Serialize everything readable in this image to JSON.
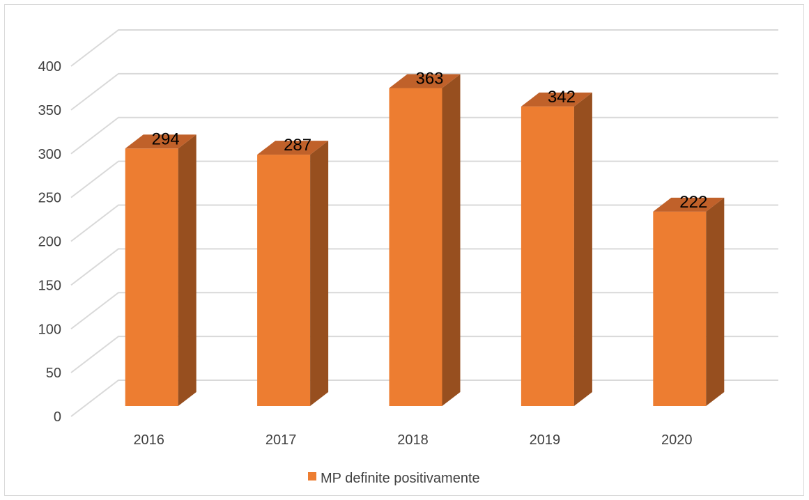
{
  "chart_data": {
    "type": "bar",
    "style": "3d-column",
    "categories": [
      "2016",
      "2017",
      "2018",
      "2019",
      "2020"
    ],
    "series": [
      {
        "name": "MP definite positivamente",
        "values": [
          294,
          287,
          363,
          342,
          222
        ]
      }
    ],
    "ylim": [
      0,
      400
    ],
    "y_ticks": [
      "0",
      "50",
      "100",
      "150",
      "200",
      "250",
      "300",
      "350",
      "400"
    ],
    "data_labels": [
      "294",
      "287",
      "363",
      "342",
      "222"
    ],
    "grid": true,
    "legend_position": "bottom",
    "colors": {
      "front": "#ED7D31",
      "side": "#974F1F",
      "top": "#C0612A",
      "grid": "#d9d9d9"
    }
  }
}
